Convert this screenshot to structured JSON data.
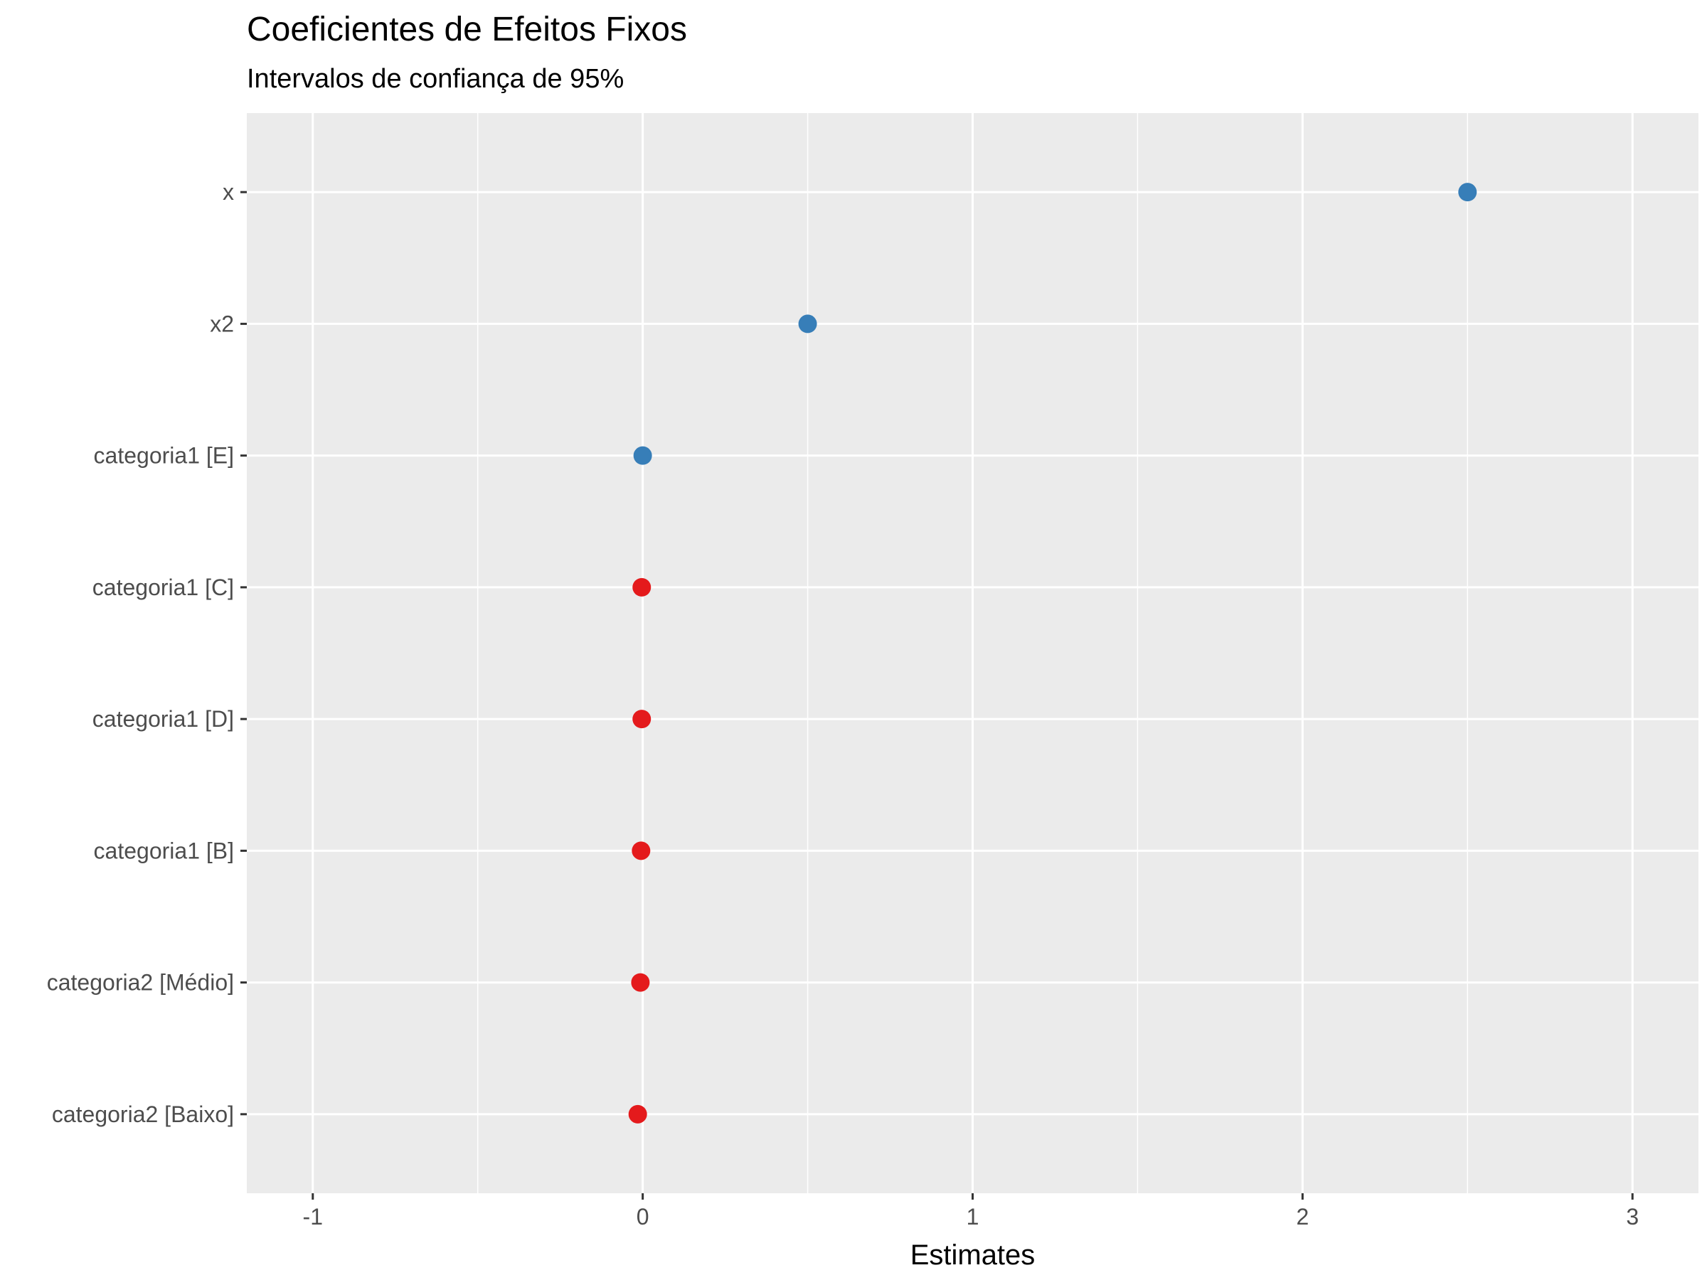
{
  "chart_data": {
    "type": "scatter",
    "title": "Coeficientes de Efeitos Fixos",
    "subtitle": "Intervalos de confiança de 95%",
    "xlabel": "Estimates",
    "ylabel": "",
    "xlim": [
      -1.2,
      3.2
    ],
    "x_ticks": [
      -1,
      0,
      1,
      2,
      3
    ],
    "x_tick_labels": [
      "-1",
      "0",
      "1",
      "2",
      "3"
    ],
    "categories": [
      "x",
      "x2",
      "categoria1 [E]",
      "categoria1 [C]",
      "categoria1 [D]",
      "categoria1 [B]",
      "categoria2 [Médio]",
      "categoria2 [Baixo]"
    ],
    "values": [
      2.5,
      0.5,
      0.0,
      -0.003,
      -0.003,
      -0.005,
      -0.007,
      -0.015
    ],
    "point_colors": [
      "#377eb8",
      "#377eb8",
      "#377eb8",
      "#e41a1c",
      "#e41a1c",
      "#e41a1c",
      "#e41a1c",
      "#e41a1c"
    ],
    "grid": true,
    "legend": "none",
    "colors": {
      "panel": "#ebebeb",
      "grid": "#ffffff",
      "positive": "#377eb8",
      "negative": "#e41a1c"
    }
  }
}
